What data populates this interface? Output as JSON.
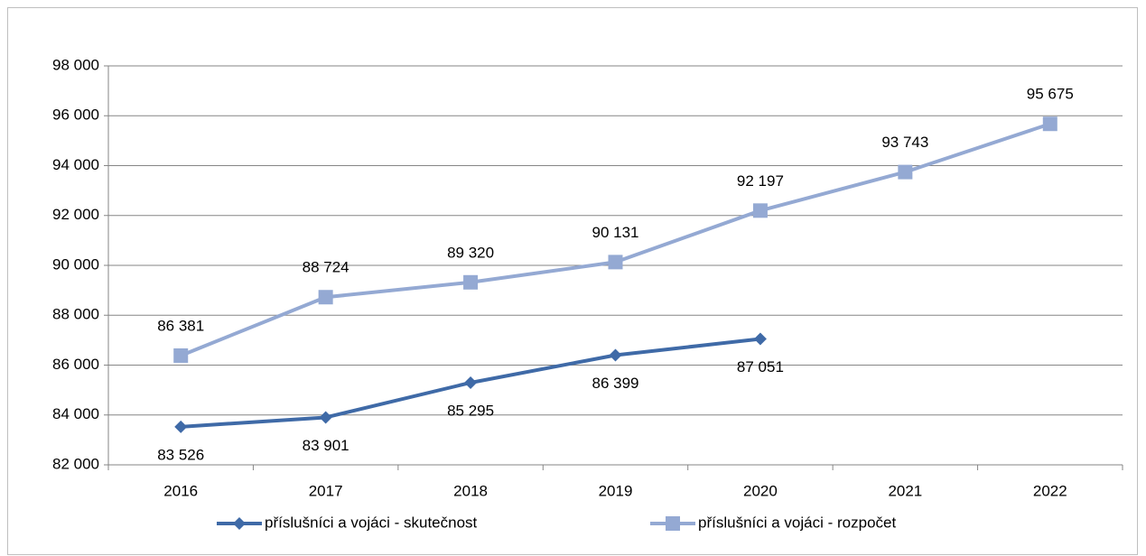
{
  "chart_data": {
    "type": "line",
    "categories": [
      "2016",
      "2017",
      "2018",
      "2019",
      "2020",
      "2021",
      "2022"
    ],
    "series": [
      {
        "name": "příslušníci a vojáci - skutečnost",
        "color": "#3f6aa7",
        "marker": "diamond",
        "values": [
          83526,
          83901,
          85295,
          86399,
          87051,
          null,
          null
        ],
        "value_labels": [
          "83 526",
          "83 901",
          "85 295",
          "86 399",
          "87 051",
          null,
          null
        ],
        "label_position": "below"
      },
      {
        "name": "příslušníci a vojáci - rozpočet",
        "color": "#94a9d3",
        "marker": "square",
        "values": [
          86381,
          88724,
          89320,
          90131,
          92197,
          93743,
          95675
        ],
        "value_labels": [
          "86 381",
          "88 724",
          "89 320",
          "90 131",
          "92 197",
          "93 743",
          "95 675"
        ],
        "label_position": "above"
      }
    ],
    "ylim": [
      82000,
      98000
    ],
    "yticks": [
      {
        "value": 82000,
        "label": "82 000"
      },
      {
        "value": 84000,
        "label": "84 000"
      },
      {
        "value": 86000,
        "label": "86 000"
      },
      {
        "value": 88000,
        "label": "88 000"
      },
      {
        "value": 90000,
        "label": "90 000"
      },
      {
        "value": 92000,
        "label": "92 000"
      },
      {
        "value": 94000,
        "label": "94 000"
      },
      {
        "value": 96000,
        "label": "96 000"
      },
      {
        "value": 98000,
        "label": "98 000"
      }
    ],
    "grid": true,
    "legend": "bottom"
  }
}
